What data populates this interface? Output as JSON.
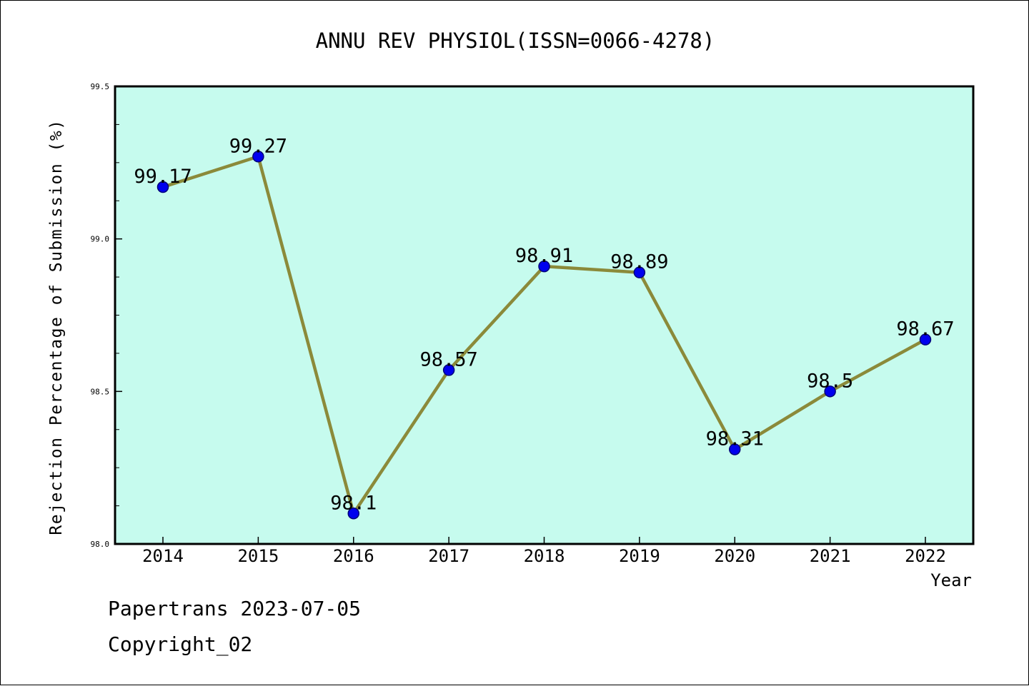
{
  "chart_data": {
    "type": "line",
    "title": "ANNU REV PHYSIOL(ISSN=0066-4278)",
    "xlabel": "Year",
    "ylabel": "Rejection Percentage of Submission (%)",
    "categories": [
      "2014",
      "2015",
      "2016",
      "2017",
      "2018",
      "2019",
      "2020",
      "2021",
      "2022"
    ],
    "series": [
      {
        "values": [
          99.17,
          99.27,
          98.1,
          98.57,
          98.91,
          98.89,
          98.31,
          98.5,
          98.67
        ],
        "labels": [
          "99.17",
          "99.27",
          "98.1",
          "98.57",
          "98.91",
          "98.89",
          "98.31",
          "98.5",
          "98.67"
        ]
      }
    ],
    "ylim": [
      98.0,
      99.5
    ],
    "yticks": [
      "98.0",
      "98.5",
      "99.0",
      "99.5"
    ],
    "grid": false,
    "colors": {
      "plot_background": "#c6fbee",
      "line": "#8b8a3a",
      "marker": "#0000ee",
      "marker_edge": "#00007a"
    }
  },
  "footer": {
    "line1": "Papertrans 2023-07-05",
    "line2": "Copyright_02"
  }
}
